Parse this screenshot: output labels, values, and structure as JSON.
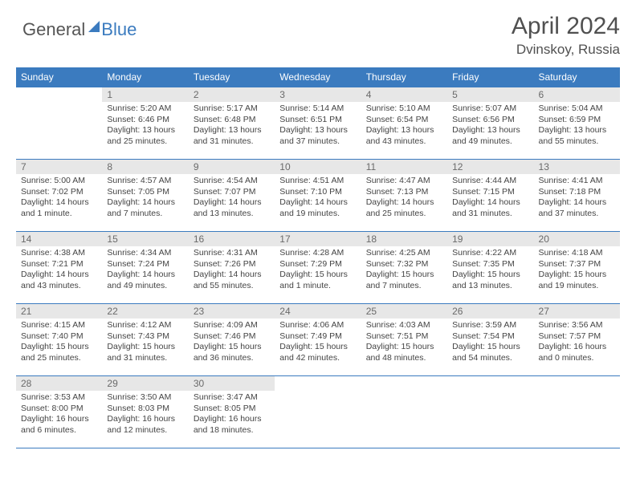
{
  "logo": {
    "general": "General",
    "blue": "Blue"
  },
  "title": "April 2024",
  "location": "Dvinskoy, Russia",
  "weekdays": [
    "Sunday",
    "Monday",
    "Tuesday",
    "Wednesday",
    "Thursday",
    "Friday",
    "Saturday"
  ],
  "colors": {
    "header_bg": "#3b7bbf",
    "header_text": "#ffffff",
    "daynum_bg": "#e7e7e7",
    "daynum_text": "#6a6a6a",
    "border": "#3b7bbf",
    "body_text": "#444444",
    "logo_gray": "#555555",
    "logo_blue": "#3b7bbf",
    "title_text": "#505050"
  },
  "typography": {
    "title_fontsize": 30,
    "location_fontsize": 17,
    "weekday_fontsize": 12,
    "daynum_fontsize": 12,
    "cell_fontsize": 10.5,
    "logo_fontsize": 22
  },
  "weeks": [
    [
      {
        "day": "",
        "sunrise": "",
        "sunset": "",
        "daylight": ""
      },
      {
        "day": "1",
        "sunrise": "Sunrise: 5:20 AM",
        "sunset": "Sunset: 6:46 PM",
        "daylight": "Daylight: 13 hours and 25 minutes."
      },
      {
        "day": "2",
        "sunrise": "Sunrise: 5:17 AM",
        "sunset": "Sunset: 6:48 PM",
        "daylight": "Daylight: 13 hours and 31 minutes."
      },
      {
        "day": "3",
        "sunrise": "Sunrise: 5:14 AM",
        "sunset": "Sunset: 6:51 PM",
        "daylight": "Daylight: 13 hours and 37 minutes."
      },
      {
        "day": "4",
        "sunrise": "Sunrise: 5:10 AM",
        "sunset": "Sunset: 6:54 PM",
        "daylight": "Daylight: 13 hours and 43 minutes."
      },
      {
        "day": "5",
        "sunrise": "Sunrise: 5:07 AM",
        "sunset": "Sunset: 6:56 PM",
        "daylight": "Daylight: 13 hours and 49 minutes."
      },
      {
        "day": "6",
        "sunrise": "Sunrise: 5:04 AM",
        "sunset": "Sunset: 6:59 PM",
        "daylight": "Daylight: 13 hours and 55 minutes."
      }
    ],
    [
      {
        "day": "7",
        "sunrise": "Sunrise: 5:00 AM",
        "sunset": "Sunset: 7:02 PM",
        "daylight": "Daylight: 14 hours and 1 minute."
      },
      {
        "day": "8",
        "sunrise": "Sunrise: 4:57 AM",
        "sunset": "Sunset: 7:05 PM",
        "daylight": "Daylight: 14 hours and 7 minutes."
      },
      {
        "day": "9",
        "sunrise": "Sunrise: 4:54 AM",
        "sunset": "Sunset: 7:07 PM",
        "daylight": "Daylight: 14 hours and 13 minutes."
      },
      {
        "day": "10",
        "sunrise": "Sunrise: 4:51 AM",
        "sunset": "Sunset: 7:10 PM",
        "daylight": "Daylight: 14 hours and 19 minutes."
      },
      {
        "day": "11",
        "sunrise": "Sunrise: 4:47 AM",
        "sunset": "Sunset: 7:13 PM",
        "daylight": "Daylight: 14 hours and 25 minutes."
      },
      {
        "day": "12",
        "sunrise": "Sunrise: 4:44 AM",
        "sunset": "Sunset: 7:15 PM",
        "daylight": "Daylight: 14 hours and 31 minutes."
      },
      {
        "day": "13",
        "sunrise": "Sunrise: 4:41 AM",
        "sunset": "Sunset: 7:18 PM",
        "daylight": "Daylight: 14 hours and 37 minutes."
      }
    ],
    [
      {
        "day": "14",
        "sunrise": "Sunrise: 4:38 AM",
        "sunset": "Sunset: 7:21 PM",
        "daylight": "Daylight: 14 hours and 43 minutes."
      },
      {
        "day": "15",
        "sunrise": "Sunrise: 4:34 AM",
        "sunset": "Sunset: 7:24 PM",
        "daylight": "Daylight: 14 hours and 49 minutes."
      },
      {
        "day": "16",
        "sunrise": "Sunrise: 4:31 AM",
        "sunset": "Sunset: 7:26 PM",
        "daylight": "Daylight: 14 hours and 55 minutes."
      },
      {
        "day": "17",
        "sunrise": "Sunrise: 4:28 AM",
        "sunset": "Sunset: 7:29 PM",
        "daylight": "Daylight: 15 hours and 1 minute."
      },
      {
        "day": "18",
        "sunrise": "Sunrise: 4:25 AM",
        "sunset": "Sunset: 7:32 PM",
        "daylight": "Daylight: 15 hours and 7 minutes."
      },
      {
        "day": "19",
        "sunrise": "Sunrise: 4:22 AM",
        "sunset": "Sunset: 7:35 PM",
        "daylight": "Daylight: 15 hours and 13 minutes."
      },
      {
        "day": "20",
        "sunrise": "Sunrise: 4:18 AM",
        "sunset": "Sunset: 7:37 PM",
        "daylight": "Daylight: 15 hours and 19 minutes."
      }
    ],
    [
      {
        "day": "21",
        "sunrise": "Sunrise: 4:15 AM",
        "sunset": "Sunset: 7:40 PM",
        "daylight": "Daylight: 15 hours and 25 minutes."
      },
      {
        "day": "22",
        "sunrise": "Sunrise: 4:12 AM",
        "sunset": "Sunset: 7:43 PM",
        "daylight": "Daylight: 15 hours and 31 minutes."
      },
      {
        "day": "23",
        "sunrise": "Sunrise: 4:09 AM",
        "sunset": "Sunset: 7:46 PM",
        "daylight": "Daylight: 15 hours and 36 minutes."
      },
      {
        "day": "24",
        "sunrise": "Sunrise: 4:06 AM",
        "sunset": "Sunset: 7:49 PM",
        "daylight": "Daylight: 15 hours and 42 minutes."
      },
      {
        "day": "25",
        "sunrise": "Sunrise: 4:03 AM",
        "sunset": "Sunset: 7:51 PM",
        "daylight": "Daylight: 15 hours and 48 minutes."
      },
      {
        "day": "26",
        "sunrise": "Sunrise: 3:59 AM",
        "sunset": "Sunset: 7:54 PM",
        "daylight": "Daylight: 15 hours and 54 minutes."
      },
      {
        "day": "27",
        "sunrise": "Sunrise: 3:56 AM",
        "sunset": "Sunset: 7:57 PM",
        "daylight": "Daylight: 16 hours and 0 minutes."
      }
    ],
    [
      {
        "day": "28",
        "sunrise": "Sunrise: 3:53 AM",
        "sunset": "Sunset: 8:00 PM",
        "daylight": "Daylight: 16 hours and 6 minutes."
      },
      {
        "day": "29",
        "sunrise": "Sunrise: 3:50 AM",
        "sunset": "Sunset: 8:03 PM",
        "daylight": "Daylight: 16 hours and 12 minutes."
      },
      {
        "day": "30",
        "sunrise": "Sunrise: 3:47 AM",
        "sunset": "Sunset: 8:05 PM",
        "daylight": "Daylight: 16 hours and 18 minutes."
      },
      {
        "day": "",
        "sunrise": "",
        "sunset": "",
        "daylight": ""
      },
      {
        "day": "",
        "sunrise": "",
        "sunset": "",
        "daylight": ""
      },
      {
        "day": "",
        "sunrise": "",
        "sunset": "",
        "daylight": ""
      },
      {
        "day": "",
        "sunrise": "",
        "sunset": "",
        "daylight": ""
      }
    ]
  ]
}
